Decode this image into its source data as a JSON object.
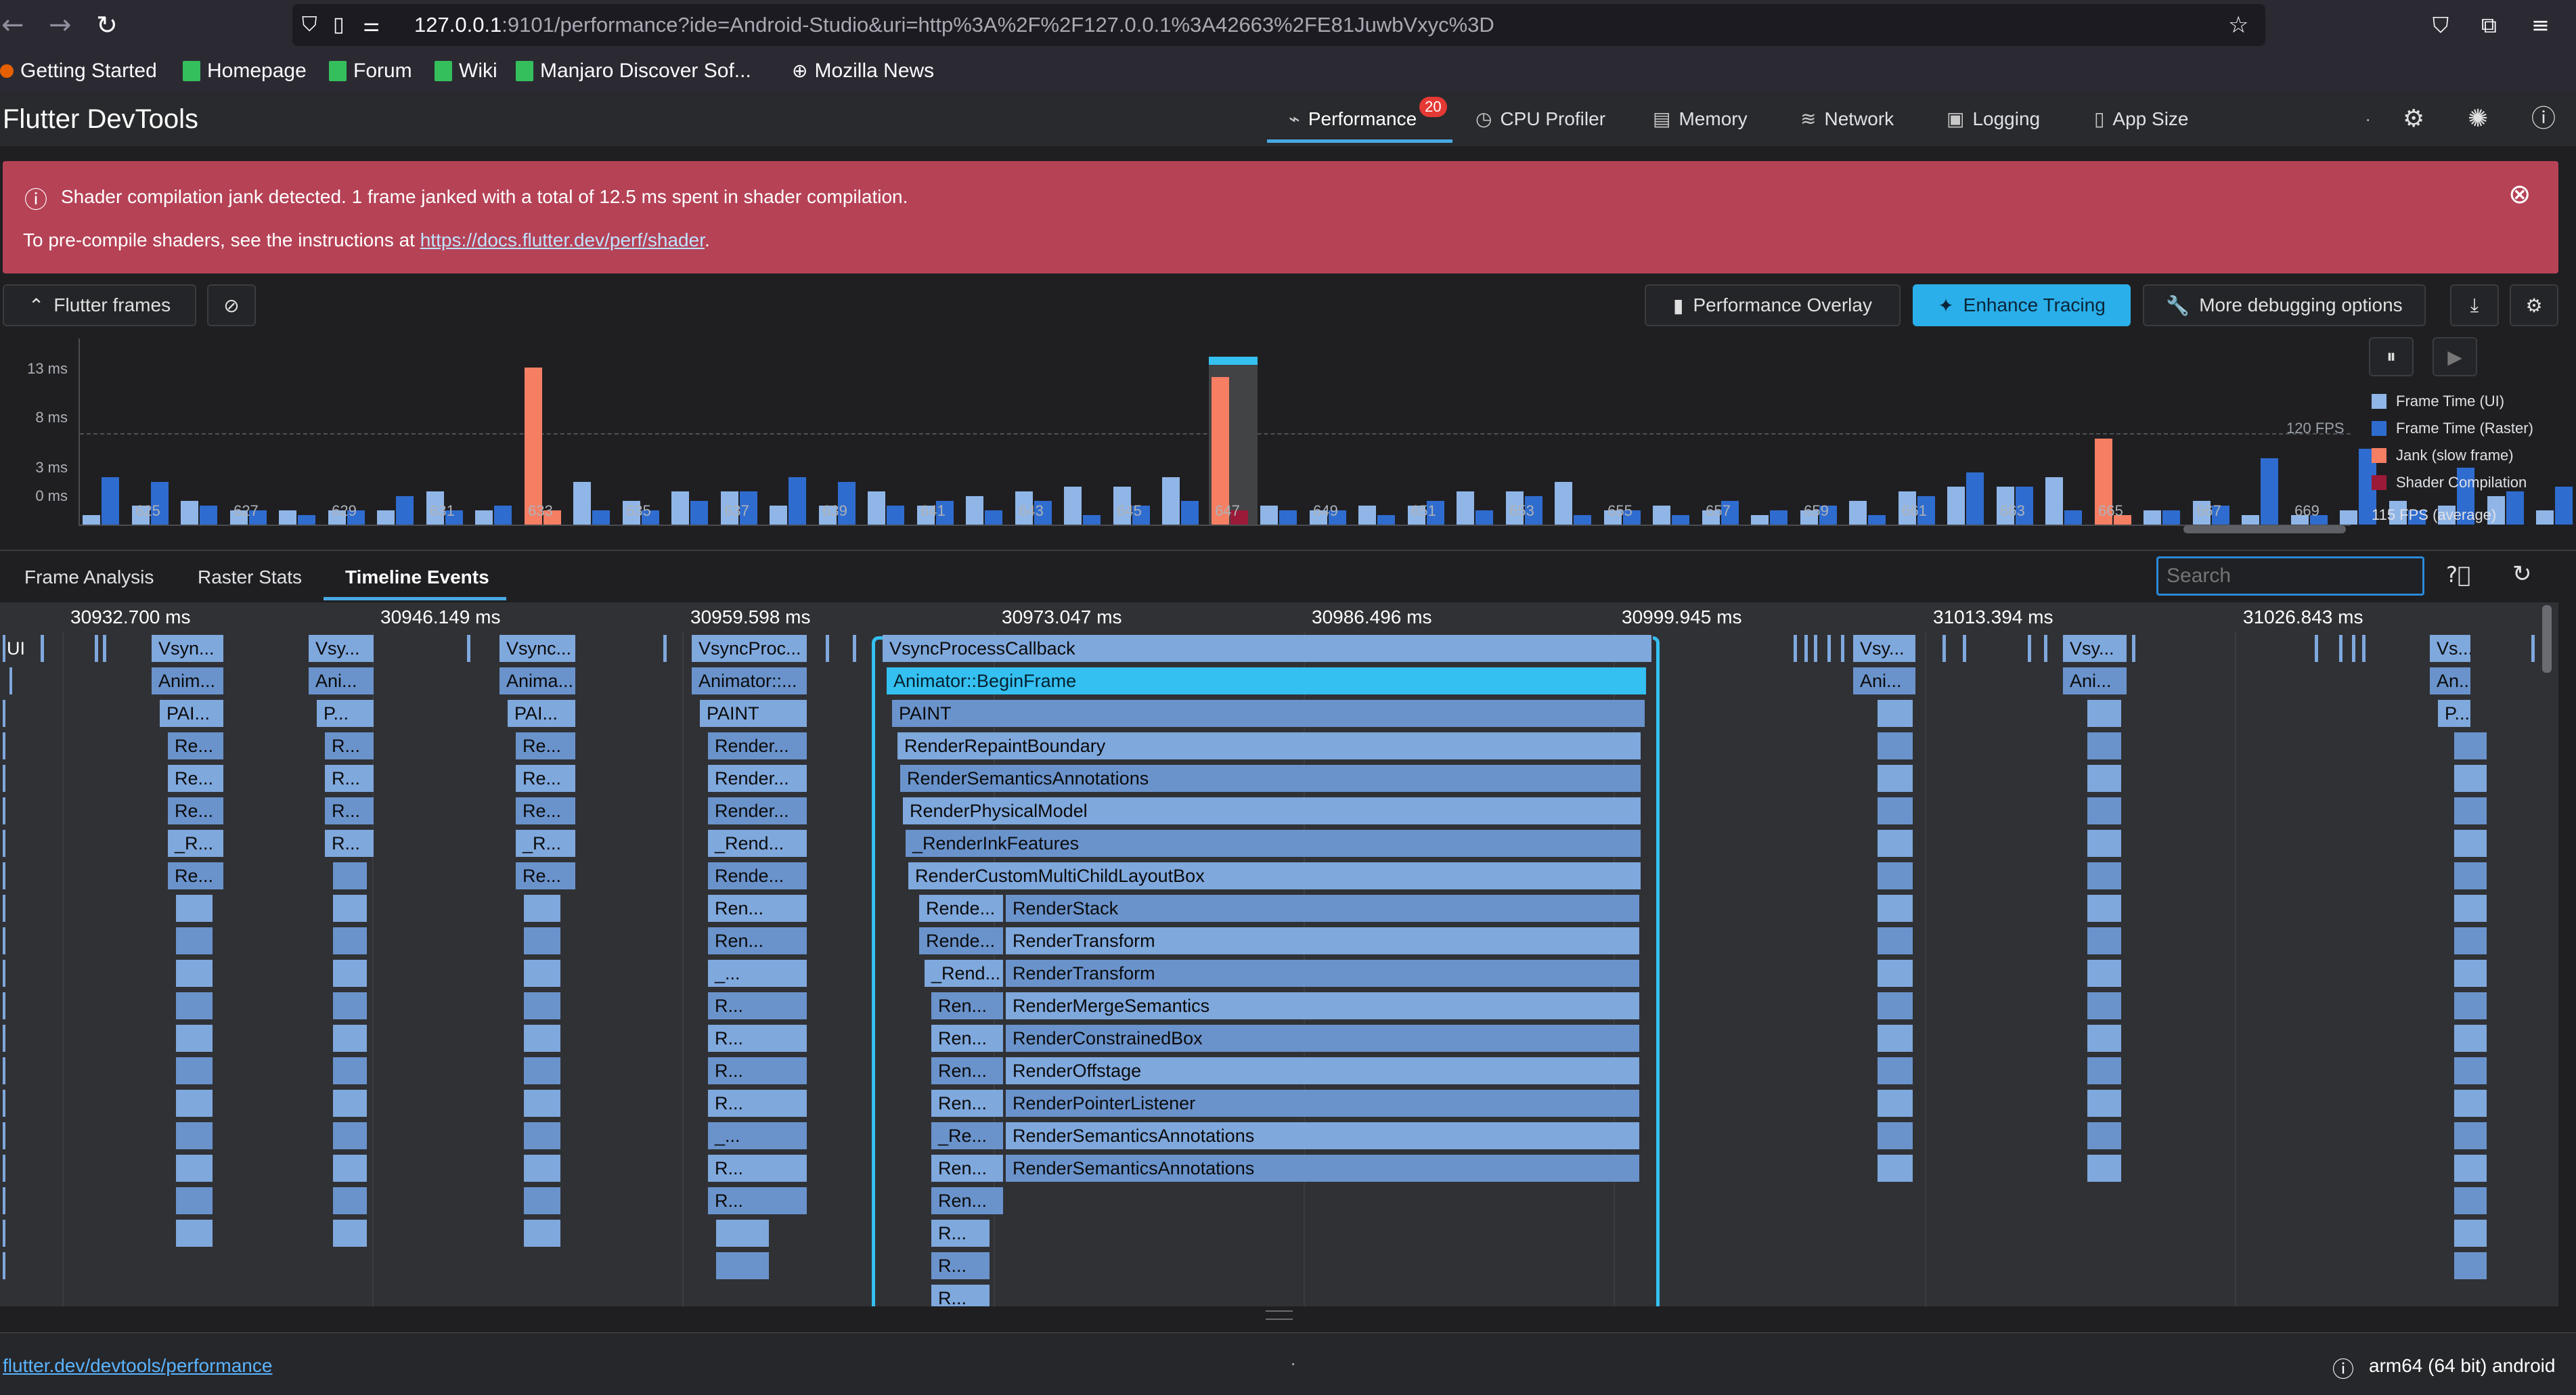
{
  "browser": {
    "url_host": "127.0.0.1",
    "url_rest": ":9101/performance?ide=Android-Studio&uri=http%3A%2F%2F127.0.0.1%3A42663%2FE81JuwbVxyc%3D",
    "bookmarks": [
      "Getting Started",
      "Homepage",
      "Forum",
      "Wiki",
      "Manjaro Discover Sof...",
      "Mozilla News"
    ]
  },
  "app": {
    "title": "Flutter DevTools",
    "tabs": [
      {
        "label": "Performance",
        "icon": "performance-icon",
        "badge": "20"
      },
      {
        "label": "CPU Profiler",
        "icon": "cpu-profiler-icon"
      },
      {
        "label": "Memory",
        "icon": "memory-icon"
      },
      {
        "label": "Network",
        "icon": "network-icon"
      },
      {
        "label": "Logging",
        "icon": "logging-icon"
      },
      {
        "label": "App Size",
        "icon": "app-size-icon"
      }
    ],
    "dot": "·"
  },
  "banner": {
    "line1": "Shader compilation jank detected. 1 frame janked with a total of 12.5 ms spent in shader compilation.",
    "line2_prefix": "To pre-compile shaders, see the instructions at ",
    "line2_link": "https://docs.flutter.dev/perf/shader",
    "line2_suffix": ".",
    "color": "#b64256"
  },
  "toolbar": {
    "flutter_frames": "Flutter frames",
    "performance_overlay": "Performance Overlay",
    "enhance_tracing": "Enhance Tracing",
    "more_debugging": "More debugging options"
  },
  "chart_data": {
    "type": "bar",
    "y_ticks": [
      "13 ms",
      "8 ms",
      "3 ms",
      "0 ms"
    ],
    "ylim": [
      0,
      16.5
    ],
    "target_label": "120 FPS",
    "x_tick_labels": [
      "625",
      "627",
      "629",
      "631",
      "633",
      "635",
      "637",
      "639",
      "641",
      "643",
      "645",
      "647",
      "649",
      "651",
      "653",
      "655",
      "657",
      "659",
      "661",
      "663",
      "665",
      "667",
      "669"
    ],
    "first_frame": 624,
    "frames_ui": [
      1.0,
      2.0,
      2.5,
      1.5,
      1.5,
      1.5,
      1.5,
      3.5,
      1.5,
      2.0,
      4.5,
      2.5,
      3.5,
      3.5,
      2.0,
      2.0,
      3.5,
      2.0,
      3.0,
      3.5,
      4.0,
      4.0,
      5.0,
      4.0,
      2.0,
      1.5,
      2.0,
      2.0,
      3.5,
      3.5,
      4.5,
      1.5,
      2.0,
      1.5,
      1.0,
      1.5,
      2.5,
      3.5,
      4.0,
      4.0,
      5.0,
      2.5,
      1.5,
      2.5,
      1.0,
      1.0,
      1.5,
      2.5,
      2.0,
      3.0,
      1.5
    ],
    "frames_raster": [
      5.0,
      4.5,
      2.0,
      1.5,
      1.0,
      1.5,
      3.0,
      1.5,
      2.0,
      1.5,
      1.5,
      1.5,
      2.5,
      3.5,
      5.0,
      4.5,
      2.0,
      2.5,
      1.5,
      2.5,
      1.0,
      2.0,
      2.5,
      1.5,
      1.5,
      1.5,
      1.0,
      2.5,
      1.5,
      3.0,
      1.0,
      1.5,
      1.0,
      2.5,
      1.5,
      2.0,
      1.0,
      3.0,
      5.5,
      4.0,
      1.5,
      1.0,
      1.5,
      2.0,
      7.0,
      1.0,
      8.0,
      1.5,
      6.0,
      3.5,
      4.0
    ],
    "jank_frames": [
      {
        "frame": 633,
        "ui": 16.5
      },
      {
        "frame": 647,
        "ui": 15.5
      },
      {
        "frame": 665,
        "ui": 9.0
      }
    ],
    "shader_frames": [
      647
    ],
    "selected_frame": 647,
    "legend": [
      {
        "name": "Frame Time (UI)",
        "color": "#90b6e8"
      },
      {
        "name": "Frame Time (Raster)",
        "color": "#2f6ccf"
      },
      {
        "name": "Jank (slow frame)",
        "color": "#f57e63"
      },
      {
        "name": "Shader Compilation",
        "color": "#9b1a38"
      }
    ],
    "average": "115 FPS (average)"
  },
  "bottom_tabs": [
    "Frame Analysis",
    "Raster Stats",
    "Timeline Events"
  ],
  "search_placeholder": "Search",
  "timeline": {
    "ticks": [
      "30932.700 ms",
      "30946.149 ms",
      "30959.598 ms",
      "30973.047 ms",
      "30986.496 ms",
      "30999.945 ms",
      "31013.394 ms",
      "31026.843 ms"
    ],
    "thread_label": "UI",
    "events": [
      "VsyncProcessCallback",
      "Animator::BeginFrame",
      "PAINT",
      "RenderRepaintBoundary",
      "RenderSemanticsAnnotations",
      "RenderPhysicalModel",
      "_RenderInkFeatures",
      "RenderCustomMultiChildLayoutBox",
      "RenderStack",
      "RenderTransform",
      "RenderTransform",
      "RenderMergeSemantics",
      "RenderConstrainedBox",
      "RenderOffstage",
      "RenderPointerListener",
      "RenderSemanticsAnnotations",
      "RenderSemanticsAnnotations"
    ],
    "left_events": [
      "Rende...",
      "Rende...",
      "_Rend...",
      "Ren...",
      "Ren...",
      "Ren...",
      "Ren...",
      "_Re...",
      "Ren...",
      "Ren...",
      "R...",
      "R...",
      "R..."
    ],
    "col1": [
      "Vsyn...",
      "Anim...",
      "PAI...",
      "Re...",
      "Re...",
      "Re...",
      "_R...",
      "Re..."
    ],
    "col2": [
      "Vsy...",
      "Ani...",
      "P...",
      "R...",
      "R...",
      "R...",
      "R..."
    ],
    "col3": [
      "Vsync...",
      "Anima...",
      "PAI...",
      "Re...",
      "Re...",
      "Re...",
      "_R...",
      "Re..."
    ],
    "col4": [
      "VsyncProc...",
      "Animator::...",
      "PAINT",
      "Render...",
      "Render...",
      "Render...",
      "_Rend...",
      "Rende...",
      "Ren...",
      "Ren...",
      "_...",
      "R...",
      "R...",
      "R...",
      "R...",
      "_...",
      "R...",
      "R..."
    ],
    "col5": [
      "Vsy...",
      "Ani..."
    ],
    "col6": [
      "Vsy...",
      "Ani..."
    ],
    "col7": [
      "Vs...",
      "An...",
      "P..."
    ]
  },
  "footer": {
    "link": "flutter.dev/devtools/performance",
    "dot": "·",
    "device": "arm64 (64 bit) android"
  }
}
